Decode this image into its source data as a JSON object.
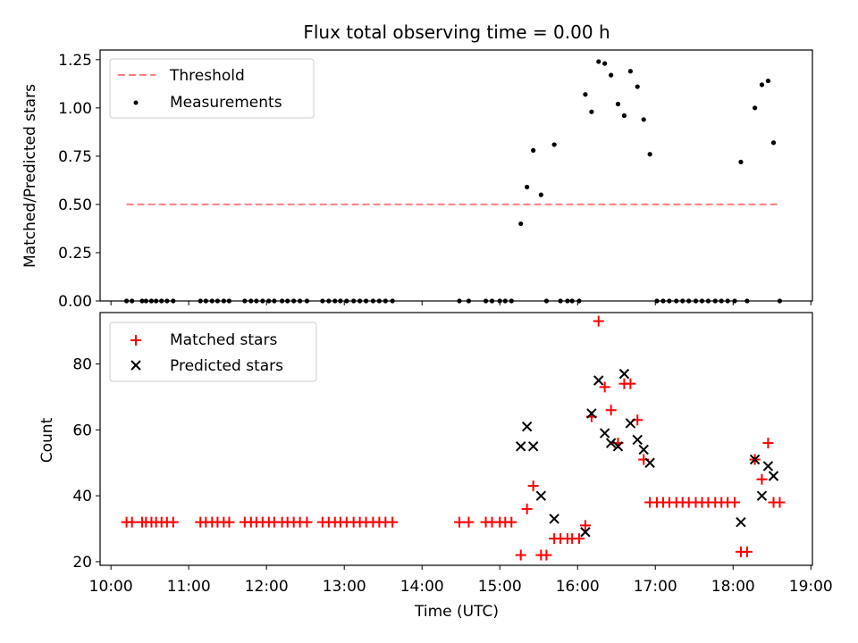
{
  "chart_data": [
    {
      "type": "scatter",
      "title": "Flux total observing time = 0.00 h",
      "ylabel": "Matched/Predicted stars",
      "ylim": [
        0,
        1.3
      ],
      "xlim": [
        9.86,
        19.02
      ],
      "yticks": [
        0.0,
        0.25,
        0.5,
        0.75,
        1.0,
        1.25
      ],
      "ytick_labels": [
        "0.00",
        "0.25",
        "0.50",
        "0.75",
        "1.00",
        "1.25"
      ],
      "legend_position": "upper-left",
      "legend": [
        "Threshold",
        "Measurements"
      ],
      "series": [
        {
          "name": "Threshold",
          "kind": "dashed-line",
          "color": "#ff7f7f",
          "x": [
            10.2,
            18.6
          ],
          "y": [
            0.5,
            0.5
          ]
        },
        {
          "name": "Measurements",
          "kind": "points",
          "color": "#000000",
          "x": [
            10.2,
            10.27,
            10.4,
            10.45,
            10.52,
            10.58,
            10.65,
            10.72,
            10.8,
            11.15,
            11.22,
            11.3,
            11.37,
            11.45,
            11.52,
            11.72,
            11.8,
            11.87,
            11.95,
            12.03,
            12.1,
            12.2,
            12.27,
            12.35,
            12.43,
            12.52,
            12.72,
            12.8,
            12.88,
            12.95,
            13.03,
            13.12,
            13.2,
            13.28,
            13.37,
            13.45,
            13.53,
            13.62,
            14.48,
            14.6,
            14.82,
            14.9,
            15.0,
            15.07,
            15.15,
            15.27,
            15.35,
            15.43,
            15.53,
            15.6,
            15.7,
            15.78,
            15.87,
            15.93,
            16.02,
            16.1,
            16.18,
            16.27,
            16.35,
            16.43,
            16.52,
            16.6,
            16.68,
            16.77,
            16.85,
            16.93,
            17.02,
            17.1,
            17.18,
            17.27,
            17.35,
            17.43,
            17.52,
            17.6,
            17.68,
            17.77,
            17.85,
            17.93,
            18.02,
            18.1,
            18.18,
            18.28,
            18.37,
            18.45,
            18.52,
            18.6
          ],
          "y": [
            0,
            0,
            0,
            0,
            0,
            0,
            0,
            0,
            0,
            0,
            0,
            0,
            0,
            0,
            0,
            0,
            0,
            0,
            0,
            0,
            0,
            0,
            0,
            0,
            0,
            0,
            0,
            0,
            0,
            0,
            0,
            0,
            0,
            0,
            0,
            0,
            0,
            0,
            0,
            0,
            0,
            0,
            0,
            0,
            0,
            0.4,
            0.59,
            0.78,
            0.55,
            0,
            0.81,
            0,
            0,
            0,
            0,
            1.07,
            0.98,
            1.24,
            1.23,
            1.17,
            1.02,
            0.96,
            1.19,
            1.11,
            0.94,
            0.76,
            0,
            0,
            0,
            0,
            0,
            0,
            0,
            0,
            0,
            0,
            0,
            0,
            0,
            0.72,
            0,
            1.0,
            1.12,
            1.14,
            0.82,
            0
          ]
        }
      ]
    },
    {
      "type": "scatter",
      "title": "",
      "ylabel": "Count",
      "xlabel": "Time (UTC)",
      "ylim": [
        18.9,
        95.6
      ],
      "xlim": [
        9.86,
        19.02
      ],
      "yticks": [
        20,
        40,
        60,
        80
      ],
      "ytick_labels": [
        "20",
        "40",
        "60",
        "80"
      ],
      "xticks": [
        10,
        11,
        12,
        13,
        14,
        15,
        16,
        17,
        18,
        19
      ],
      "xtick_labels": [
        "10:00",
        "11:00",
        "12:00",
        "13:00",
        "14:00",
        "15:00",
        "16:00",
        "17:00",
        "18:00",
        "19:00"
      ],
      "legend_position": "upper-left",
      "legend": [
        "Matched stars",
        "Predicted stars"
      ],
      "series": [
        {
          "name": "Matched stars",
          "marker": "+",
          "color": "#ff0000",
          "x": [
            10.2,
            10.27,
            10.4,
            10.45,
            10.52,
            10.58,
            10.65,
            10.72,
            10.8,
            11.15,
            11.22,
            11.3,
            11.37,
            11.45,
            11.52,
            11.72,
            11.8,
            11.87,
            11.95,
            12.03,
            12.1,
            12.2,
            12.27,
            12.35,
            12.43,
            12.52,
            12.72,
            12.8,
            12.88,
            12.95,
            13.03,
            13.12,
            13.2,
            13.28,
            13.37,
            13.45,
            13.53,
            13.62,
            14.48,
            14.6,
            14.82,
            14.9,
            15.0,
            15.07,
            15.15,
            15.27,
            15.35,
            15.43,
            15.53,
            15.6,
            15.7,
            15.78,
            15.87,
            15.93,
            16.02,
            16.1,
            16.18,
            16.27,
            16.35,
            16.43,
            16.52,
            16.6,
            16.68,
            16.77,
            16.85,
            16.93,
            17.02,
            17.1,
            17.18,
            17.27,
            17.35,
            17.43,
            17.52,
            17.6,
            17.68,
            17.77,
            17.85,
            17.93,
            18.02,
            18.1,
            18.18,
            18.28,
            18.37,
            18.45,
            18.52,
            18.6
          ],
          "y": [
            32,
            32,
            32,
            32,
            32,
            32,
            32,
            32,
            32,
            32,
            32,
            32,
            32,
            32,
            32,
            32,
            32,
            32,
            32,
            32,
            32,
            32,
            32,
            32,
            32,
            32,
            32,
            32,
            32,
            32,
            32,
            32,
            32,
            32,
            32,
            32,
            32,
            32,
            32,
            32,
            32,
            32,
            32,
            32,
            32,
            22,
            36,
            43,
            22,
            22,
            27,
            27,
            27,
            27,
            27,
            31,
            64,
            93,
            73,
            66,
            56,
            74,
            74,
            63,
            51,
            38,
            38,
            38,
            38,
            38,
            38,
            38,
            38,
            38,
            38,
            38,
            38,
            38,
            38,
            23,
            23,
            51,
            45,
            56,
            38,
            38
          ]
        },
        {
          "name": "Predicted stars",
          "marker": "x",
          "color": "#000000",
          "x": [
            15.27,
            15.35,
            15.43,
            15.53,
            15.7,
            16.1,
            16.18,
            16.27,
            16.35,
            16.43,
            16.52,
            16.6,
            16.68,
            16.77,
            16.85,
            16.93,
            18.1,
            18.28,
            18.37,
            18.45,
            18.52
          ],
          "y": [
            55,
            61,
            55,
            40,
            33,
            29,
            65,
            75,
            59,
            56,
            55,
            77,
            62,
            57,
            54,
            50,
            32,
            51,
            40,
            49,
            46
          ]
        }
      ]
    }
  ]
}
